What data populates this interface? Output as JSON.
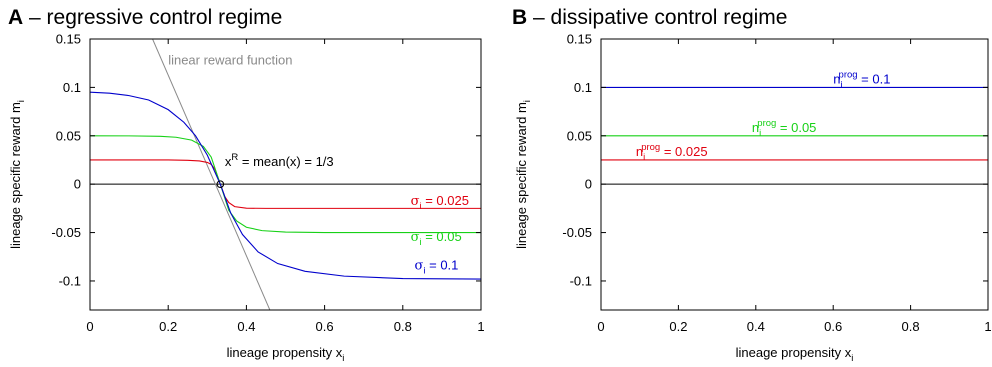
{
  "chart_data": [
    {
      "panel": "A",
      "title": "regressive control regime",
      "type": "line",
      "xlabel": {
        "text": "lineage propensity x",
        "sub": "i"
      },
      "ylabel": {
        "text": "lineage specific reward m",
        "sub": "i"
      },
      "xlim": [
        0,
        1
      ],
      "ylim": [
        -0.13,
        0.15
      ],
      "xticks": [
        "0",
        "0.2",
        "0.4",
        "0.6",
        "0.8",
        "1"
      ],
      "xtick_values": [
        0,
        0.2,
        0.4,
        0.6,
        0.8,
        1
      ],
      "yticks": [
        "0.15",
        "0.1",
        "0.05",
        "0",
        "-0.05",
        "-0.1"
      ],
      "ytick_values": [
        0.15,
        0.1,
        0.05,
        0,
        -0.05,
        -0.1
      ],
      "grid": false,
      "colors": {
        "red": "#e0000f",
        "green": "#17d117",
        "blue": "#0000cc",
        "gray": "#8a8a8a",
        "black": "#000000"
      },
      "reference_line": {
        "label": "linear reward function",
        "x": [
          0.16,
          0.46
        ],
        "y": [
          0.15,
          -0.13
        ]
      },
      "zero_line": {
        "y": 0
      },
      "crossing_point": {
        "x": 0.3333,
        "y": 0
      },
      "crossing_annotation": {
        "x_base": "x",
        "x_sup": "R",
        "rest": " = mean(x) = 1/3"
      },
      "series": [
        {
          "name": "σ_i = 0.025",
          "symbol": "σ",
          "sub": "i",
          "value": " = 0.025",
          "color": "red",
          "x": [
            0,
            0.2,
            0.25,
            0.28,
            0.3,
            0.31,
            0.32,
            0.3333,
            0.345,
            0.355,
            0.37,
            0.4,
            0.45,
            0.5,
            0.6,
            0.8,
            1.0
          ],
          "y": [
            0.025,
            0.025,
            0.0247,
            0.024,
            0.0225,
            0.0205,
            0.015,
            0.0,
            -0.013,
            -0.019,
            -0.0232,
            -0.0248,
            -0.025,
            -0.025,
            -0.025,
            -0.025,
            -0.025
          ]
        },
        {
          "name": "σ_i = 0.05",
          "symbol": "σ",
          "sub": "i",
          "value": " = 0.05",
          "color": "green",
          "x": [
            0,
            0.1,
            0.18,
            0.22,
            0.26,
            0.29,
            0.31,
            0.3333,
            0.355,
            0.375,
            0.4,
            0.44,
            0.5,
            0.6,
            0.8,
            1.0
          ],
          "y": [
            0.05,
            0.0499,
            0.0495,
            0.0485,
            0.0455,
            0.039,
            0.028,
            0.0,
            -0.027,
            -0.038,
            -0.0445,
            -0.048,
            -0.0495,
            -0.05,
            -0.05,
            -0.05
          ]
        },
        {
          "name": "σ_i = 0.1",
          "symbol": "σ",
          "sub": "i",
          "value": " = 0.1",
          "color": "blue",
          "x": [
            0,
            0.05,
            0.1,
            0.15,
            0.2,
            0.24,
            0.27,
            0.3,
            0.3333,
            0.36,
            0.39,
            0.43,
            0.48,
            0.55,
            0.65,
            0.8,
            1.0
          ],
          "y": [
            0.095,
            0.094,
            0.0915,
            0.087,
            0.077,
            0.064,
            0.05,
            0.03,
            0.0,
            -0.03,
            -0.052,
            -0.07,
            -0.082,
            -0.09,
            -0.095,
            -0.0975,
            -0.098
          ]
        }
      ],
      "series_labels": [
        {
          "series": 0,
          "lx": 0.82,
          "ly": -0.0215
        },
        {
          "series": 1,
          "lx": 0.82,
          "ly": -0.0585
        },
        {
          "series": 2,
          "lx": 0.83,
          "ly": -0.088
        }
      ]
    },
    {
      "panel": "B",
      "title": "dissipative control regime",
      "type": "line",
      "xlabel": {
        "text": "lineage propensity x",
        "sub": "i"
      },
      "ylabel": {
        "text": "lineage specific reward m",
        "sub": "i"
      },
      "xlim": [
        0,
        1
      ],
      "ylim": [
        -0.13,
        0.15
      ],
      "xticks": [
        "0",
        "0.2",
        "0.4",
        "0.6",
        "0.8",
        "1"
      ],
      "xtick_values": [
        0,
        0.2,
        0.4,
        0.6,
        0.8,
        1
      ],
      "yticks": [
        "0.15",
        "0.1",
        "0.05",
        "0",
        "-0.05",
        "-0.1"
      ],
      "ytick_values": [
        0.15,
        0.1,
        0.05,
        0,
        -0.05,
        -0.1
      ],
      "grid": false,
      "zero_line": {
        "y": 0
      },
      "series": [
        {
          "name": "n_i^prog = 0.1",
          "symbol": "n",
          "sub": "i",
          "sup": "prog",
          "value": " = 0.1",
          "color": "blue",
          "x": [
            0,
            1
          ],
          "y": [
            0.1,
            0.1
          ]
        },
        {
          "name": "n_i^prog = 0.05",
          "symbol": "n",
          "sub": "i",
          "sup": "prog",
          "value": " = 0.05",
          "color": "green",
          "x": [
            0,
            1
          ],
          "y": [
            0.05,
            0.05
          ]
        },
        {
          "name": "n_i^prog = 0.025",
          "symbol": "n",
          "sub": "i",
          "sup": "prog",
          "value": " = 0.025",
          "color": "red",
          "x": [
            0,
            1
          ],
          "y": [
            0.025,
            0.025
          ]
        }
      ],
      "series_labels": [
        {
          "series": 0,
          "lx": 0.6,
          "ly": 0.104
        },
        {
          "series": 1,
          "lx": 0.39,
          "ly": 0.054
        },
        {
          "series": 2,
          "lx": 0.09,
          "ly": 0.029
        }
      ]
    }
  ]
}
